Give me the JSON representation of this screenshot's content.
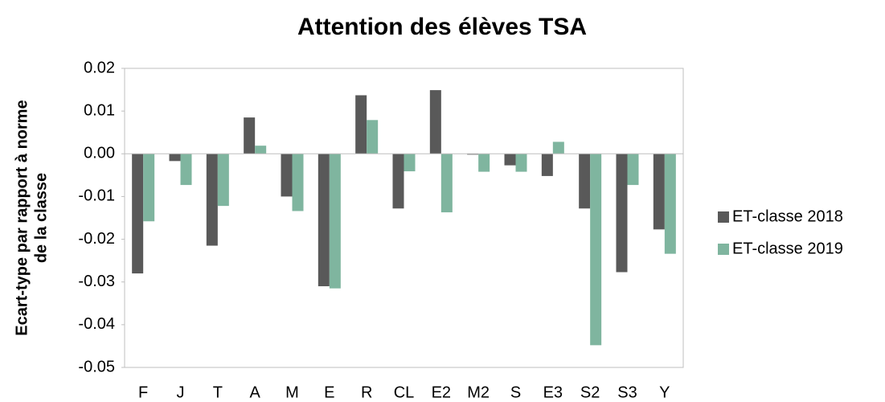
{
  "chart_data": {
    "type": "bar",
    "title": "Attention des élèves TSA",
    "ylabel": [
      "Ecart-type par rapport à norme",
      "de la classe"
    ],
    "categories": [
      "F",
      "J",
      "T",
      "A",
      "M",
      "E",
      "R",
      "CL",
      "E2",
      "M2",
      "S",
      "E3",
      "S2",
      "S3",
      "Y"
    ],
    "series": [
      {
        "name": "ET-classe 2018",
        "color": "#595959",
        "values": [
          -0.028,
          -0.0017,
          -0.0215,
          0.0085,
          -0.01,
          -0.031,
          0.0137,
          -0.0128,
          0.0149,
          -0.0002,
          -0.0027,
          -0.0052,
          -0.0128,
          -0.0277,
          -0.0177
        ]
      },
      {
        "name": "ET-classe 2019",
        "color": "#7fb59f",
        "values": [
          -0.0158,
          -0.0073,
          -0.0122,
          0.0019,
          -0.0134,
          -0.0315,
          0.0079,
          -0.0041,
          -0.0137,
          -0.0042,
          -0.0042,
          0.0028,
          -0.0448,
          -0.0073,
          -0.0234
        ]
      }
    ],
    "ylim": [
      -0.05,
      0.02
    ],
    "yticks": [
      0.02,
      0.01,
      {
        "value": 0,
        "label": "0.00"
      },
      -0.01,
      -0.02,
      -0.03,
      -0.04,
      -0.05
    ],
    "grid": false,
    "legend": "right"
  }
}
